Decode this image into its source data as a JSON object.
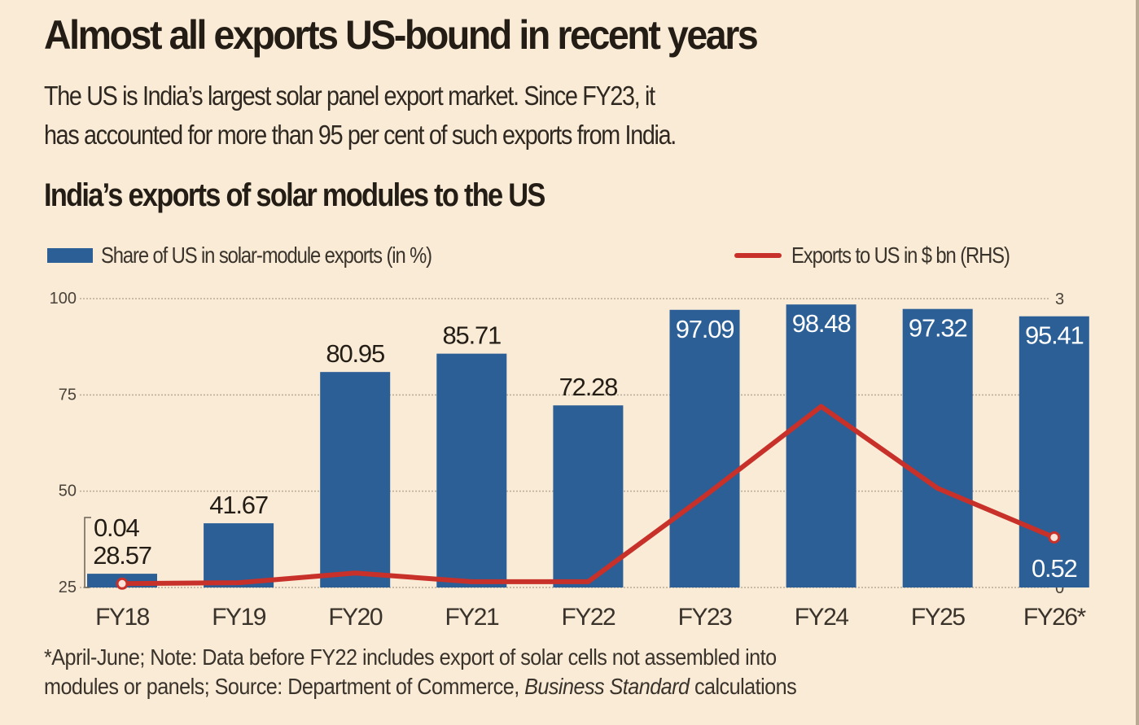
{
  "header": {
    "title": "Almost all exports US-bound in recent years",
    "subtitle_line1": "The US is India’s largest solar panel export market. Since FY23, it",
    "subtitle_line2": "has accounted for more than 95 per cent of such exports from India."
  },
  "colors": {
    "background": "#f9ebd6",
    "bar": "#2b5f96",
    "line": "#c8302a",
    "text": "#2a231c"
  },
  "chart_data": {
    "type": "bar",
    "title": "India’s exports of solar modules to the US",
    "categories": [
      "FY18",
      "FY19",
      "FY20",
      "FY21",
      "FY22",
      "FY23",
      "FY24",
      "FY25",
      "FY26*"
    ],
    "series": [
      {
        "name": "Share of US in solar-module exports (in %)",
        "type": "bar",
        "axis": "left",
        "values": [
          28.57,
          41.67,
          80.95,
          85.71,
          72.28,
          97.09,
          98.48,
          97.32,
          95.41
        ],
        "labels": [
          "28.57",
          "41.67",
          "80.95",
          "85.71",
          "72.28",
          "97.09",
          "98.48",
          "97.32",
          "95.41"
        ]
      },
      {
        "name": "Exports to US in $ bn (RHS)",
        "type": "line",
        "axis": "right",
        "values": [
          0.04,
          0.05,
          0.15,
          0.06,
          0.06,
          0.95,
          1.88,
          1.03,
          0.52
        ],
        "labels": [
          "0.04",
          "",
          "",
          "",
          "",
          "",
          "",
          "",
          "0.52"
        ]
      }
    ],
    "left_axis": {
      "ylim": [
        25,
        100
      ],
      "ticks": [
        "25",
        "50",
        "75",
        "100"
      ]
    },
    "right_axis": {
      "ylim": [
        0,
        3
      ],
      "ticks": [
        "0",
        "1",
        "2",
        "3"
      ]
    },
    "grid": true,
    "legend": "top"
  },
  "legend": {
    "bar_label": "Share of US in solar-module exports (in %)",
    "line_label": "Exports to US in $ bn (RHS)"
  },
  "footnote": {
    "line1": "*April-June; Note: Data before FY22 includes export of solar cells not assembled into",
    "line2_prefix": "modules or panels; Source: Department of Commerce, ",
    "line2_italic": "Business Standard",
    "line2_suffix": " calculations"
  }
}
